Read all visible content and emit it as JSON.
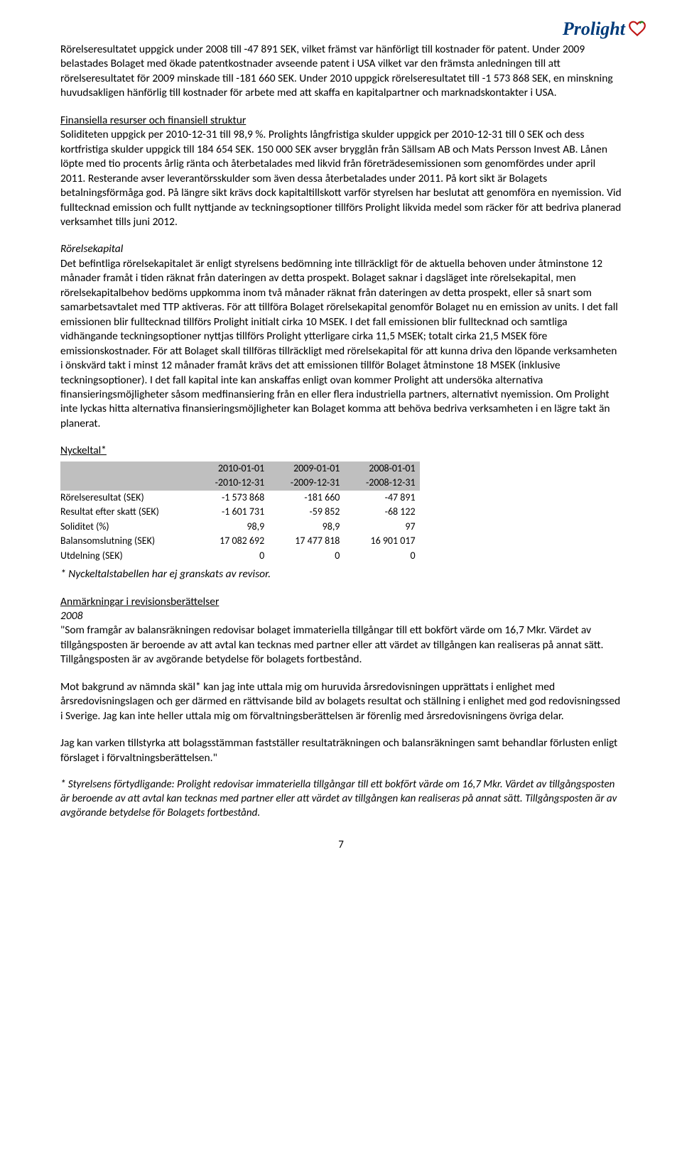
{
  "logo": {
    "brand_text": "Prolight",
    "brand_color": "#003b7a",
    "heart_outline": "#c01717",
    "heart_leaf": "#1d8a1d"
  },
  "para1": "Rörelseresultatet uppgick under 2008 till -47 891 SEK, vilket främst var hänförligt till kostnader för patent. Under 2009 belastades Bolaget med ökade patentkostnader avseende patent i USA vilket var den främsta anledningen till att rörelseresultatet för 2009 minskade till -181 660 SEK. Under 2010 uppgick rörelseresultatet till -1 573 868 SEK, en minskning huvudsakligen hänförlig till kostnader för arbete med att skaffa en kapitalpartner och marknadskontakter i USA.",
  "fin_title": "Finansiella resurser och finansiell struktur",
  "para2": "Soliditeten uppgick per 2010-12-31 till 98,9 %. Prolights långfristiga skulder uppgick per 2010-12-31 till 0 SEK och dess kortfristiga skulder uppgick till 184 654 SEK. 150 000 SEK avser brygglån från Sällsam AB och Mats Persson Invest AB. Lånen löpte med tio procents årlig ränta och återbetalades med likvid från företrädesemissionen som genomfördes under april 2011. Resterande avser leverantörsskulder som även dessa återbetalades under 2011. På kort sikt är Bolagets betalningsförmåga god. På längre sikt krävs dock kapitaltillskott varför styrelsen har beslutat att genomföra en nyemission. Vid fulltecknad emission och fullt nyttjande av teckningsoptioner tillförs Prolight likvida medel som räcker för att bedriva planerad verksamhet tills juni 2012.",
  "rkap_title": "Rörelsekapital",
  "para3": "Det befintliga rörelsekapitalet är enligt styrelsens bedömning inte tillräckligt för de aktuella behoven under åtminstone 12 månader framåt i tiden räknat från dateringen av detta prospekt. Bolaget saknar i dagsläget inte rörelsekapital, men rörelsekapitalbehov bedöms uppkomma inom två månader räknat från dateringen av detta prospekt, eller så snart som samarbetsavtalet med TTP aktiveras. För att tillföra Bolaget rörelsekapital genomför Bolaget nu en emission av units. I det fall emissionen blir fulltecknad tillförs Prolight initialt cirka 10 MSEK. I det fall emissionen blir fulltecknad och samtliga vidhängande teckningsoptioner nyttjas tillförs Prolight ytterligare cirka 11,5 MSEK; totalt cirka 21,5 MSEK före emissionskostnader. För att Bolaget skall tillföras tillräckligt med rörelsekapital för att kunna driva den löpande verksamheten i önskvärd takt i minst 12 månader framåt krävs det att emissionen tillför Bolaget åtminstone 18 MSEK (inklusive teckningsoptioner). I det fall kapital inte kan anskaffas enligt ovan kommer Prolight att undersöka alternativa finansieringsmöjligheter såsom medfinansiering från en eller flera industriella partners, alternativt nyemission. Om Prolight inte lyckas hitta alternativa finansieringsmöjligheter kan Bolaget komma att behöva bedriva verksamheten i en lägre takt än planerat.",
  "keyratios_title": "Nyckeltal*",
  "table": {
    "header_bg": "#bfbfbf",
    "cols": [
      {
        "l1": "2010-01-01",
        "l2": "-2010-12-31"
      },
      {
        "l1": "2009-01-01",
        "l2": "-2009-12-31"
      },
      {
        "l1": "2008-01-01",
        "l2": "-2008-12-31"
      }
    ],
    "rows": [
      {
        "label": "Rörelseresultat (SEK)",
        "v": [
          "-1 573 868",
          "-181 660",
          "-47 891"
        ]
      },
      {
        "label": "Resultat efter skatt (SEK)",
        "v": [
          "-1 601 731",
          "-59 852",
          "-68 122"
        ]
      },
      {
        "label": "Soliditet (%)",
        "v": [
          "98,9",
          "98,9",
          "97"
        ]
      },
      {
        "label": "Balansomslutning (SEK)",
        "v": [
          "17 082 692",
          "17 477 818",
          "16 901 017"
        ]
      },
      {
        "label": "Utdelning (SEK)",
        "v": [
          "0",
          "0",
          "0"
        ]
      }
    ]
  },
  "table_note": "* Nyckeltalstabellen har ej granskats av revisor.",
  "remarks_title": "Anmärkningar i revisionsberättelser",
  "year2008": "2008",
  "para4": "\"Som framgår av balansräkningen redovisar bolaget immateriella tillgångar till ett bokfört värde om 16,7 Mkr. Värdet av tillgångsposten är beroende av att avtal kan tecknas med partner eller att värdet av tillgången kan realiseras på annat sätt. Tillgångsposten är av avgörande betydelse för bolagets fortbestånd.",
  "para5": "Mot bakgrund av nämnda skäl* kan jag inte uttala mig om huruvida årsredovisningen upprättats i enlighet med årsredovisningslagen och ger därmed en rättvisande bild av bolagets resultat och ställning i enlighet med god redovisningssed i Sverige. Jag kan inte heller uttala mig om förvaltningsberättelsen är förenlig med årsredovisningens övriga delar.",
  "para6": "Jag kan varken tillstyrka att bolagsstämman fastställer resultaträkningen och balansräkningen samt behandlar förlusten enligt förslaget i förvaltningsberättelsen.\"",
  "footnote": "* Styrelsens förtydligande: Prolight redovisar immateriella tillgångar till ett bokfört värde om 16,7 Mkr. Värdet av tillgångsposten är beroende av att avtal kan tecknas med partner eller att värdet av tillgången kan realiseras på annat sätt. Tillgångsposten är av avgörande betydelse för Bolagets fortbestånd.",
  "page_number": "7"
}
